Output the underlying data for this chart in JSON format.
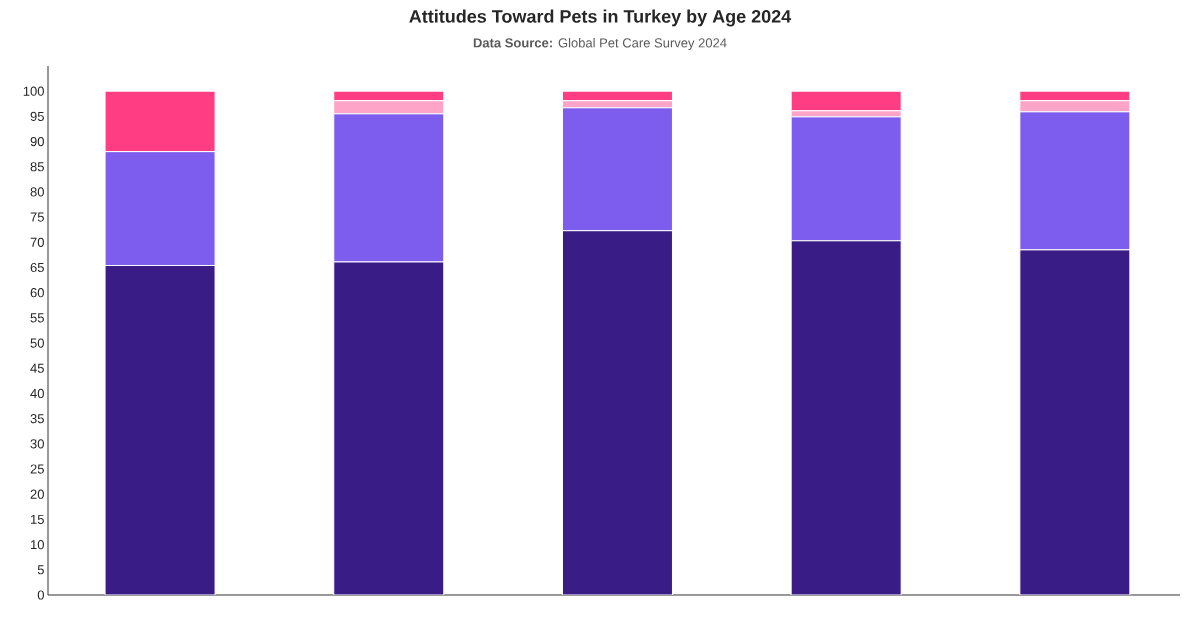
{
  "chart_data": {
    "type": "bar",
    "title": "Attitudes Toward Pets in Turkey by Age 2024",
    "subtitle": "**Data Source:** Global Pet Care Survey 2024",
    "categories": [
      null,
      null,
      null,
      null,
      null
    ],
    "stacked": true,
    "series": [
      {
        "color": "#391c85",
        "values": [
          65.4,
          66.1,
          72.3,
          70.3,
          68.5
        ]
      },
      {
        "color": "#7d5ded",
        "values": [
          22.6,
          29.4,
          24.4,
          24.6,
          27.4
        ]
      },
      {
        "color": "#fda4c8",
        "values": [
          0,
          2.6,
          1.4,
          1.2,
          2.2
        ]
      },
      {
        "color": "#ff3d83",
        "values": [
          12.0,
          1.9,
          1.9,
          3.9,
          1.9
        ]
      }
    ],
    "ylim": [
      0,
      105
    ],
    "yticks": [
      0,
      5,
      10,
      15,
      20,
      25,
      30,
      35,
      40,
      45,
      50,
      55,
      60,
      65,
      70,
      75,
      80,
      85,
      90,
      95,
      100
    ],
    "tick_labels": "y"
  }
}
